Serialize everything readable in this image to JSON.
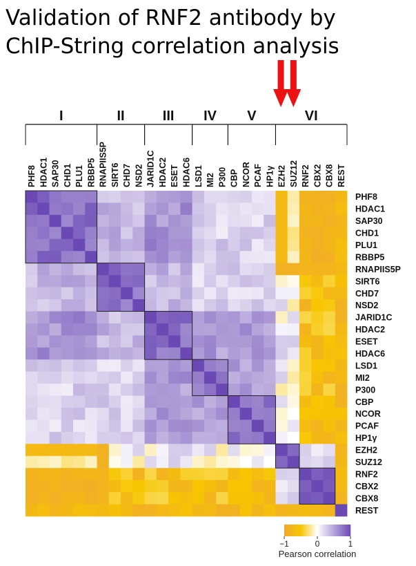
{
  "title": {
    "line1": "Validation of RNF2 antibody by",
    "line2": "ChIP-String correlation analysis"
  },
  "chart_data": {
    "type": "heatmap",
    "labels": [
      "PHF8",
      "HDAC1",
      "SAP30",
      "CHD1",
      "PLU1",
      "RBBP5",
      "RNAPIIS5P",
      "SIRT6",
      "CHD7",
      "NSD2",
      "JARID1C",
      "HDAC2",
      "ESET",
      "HDAC6",
      "LSD1",
      "MI2",
      "P300",
      "CBP",
      "NCOR",
      "PCAF",
      "HP1γ",
      "EZH2",
      "SUZ12",
      "RNF2",
      "CBX2",
      "CBX8",
      "REST"
    ],
    "groups": [
      {
        "name": "I",
        "start": 0,
        "end": 5
      },
      {
        "name": "II",
        "start": 6,
        "end": 9
      },
      {
        "name": "III",
        "start": 10,
        "end": 13
      },
      {
        "name": "IV",
        "start": 14,
        "end": 16
      },
      {
        "name": "V",
        "start": 17,
        "end": 20
      },
      {
        "name": "VI",
        "start": 21,
        "end": 26
      }
    ],
    "cluster_boxes": [
      [
        0,
        5
      ],
      [
        6,
        9
      ],
      [
        10,
        13
      ],
      [
        14,
        16
      ],
      [
        17,
        20
      ],
      [
        21,
        22
      ],
      [
        23,
        25
      ]
    ],
    "arrows_over": [
      "EZH2",
      "SUZ12"
    ],
    "value_range": [
      -1,
      1
    ],
    "colorbar": {
      "ticks": [
        -1,
        0,
        1
      ],
      "tick_labels": [
        "−1",
        "0",
        "1"
      ],
      "label": "Pearson correlation",
      "colors": [
        "#f0a830",
        "#f7c600",
        "#ffffff",
        "#6a49b4"
      ]
    },
    "arrow_color": "#ee1111",
    "note": ""
  }
}
